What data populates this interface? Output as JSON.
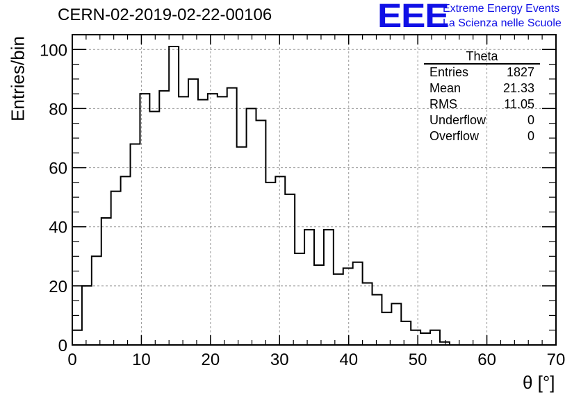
{
  "chart_data": {
    "type": "bar",
    "title": "CERN-02-2019-02-22-00106",
    "xlabel": "θ [°]",
    "ylabel": "Entries/bin",
    "xlim": [
      0,
      70
    ],
    "ylim": [
      0,
      105
    ],
    "bin_width": 1.4,
    "values": [
      5,
      20,
      30,
      43,
      52,
      57,
      68,
      85,
      79,
      86,
      101,
      84,
      90,
      83,
      85,
      84,
      87,
      67,
      80,
      76,
      55,
      57,
      51,
      31,
      39,
      27,
      39,
      24,
      26,
      28,
      21,
      17,
      11,
      14,
      8,
      5,
      4,
      5,
      1
    ],
    "x_ticks": [
      "0",
      "10",
      "20",
      "30",
      "40",
      "50",
      "60",
      "70"
    ],
    "y_ticks": [
      "0",
      "20",
      "40",
      "60",
      "80",
      "100"
    ],
    "grid": true,
    "stats": {
      "name": "Theta",
      "rows": [
        {
          "label": "Entries",
          "value": "1827"
        },
        {
          "label": "Mean",
          "value": "21.33"
        },
        {
          "label": "RMS",
          "value": "11.05"
        },
        {
          "label": "Underflow",
          "value": "0"
        },
        {
          "label": "Overflow",
          "value": "0"
        }
      ]
    }
  },
  "logo": {
    "mark": "EEE",
    "line1": "Extreme Energy Events",
    "line2": "La Scienza nelle Scuole",
    "color": "#1010e6"
  }
}
